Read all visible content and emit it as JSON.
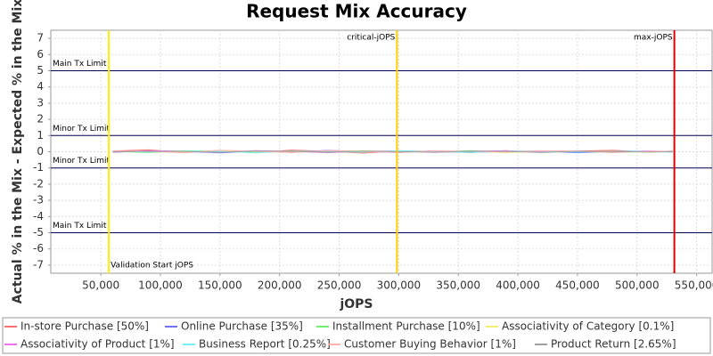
{
  "chart_data": {
    "type": "line",
    "title": "Request Mix Accuracy",
    "x_label": "jOPS",
    "y_label": "Actual % in the Mix - Expected % in the Mix",
    "x": [
      60000,
      90000,
      120000,
      150000,
      180000,
      210000,
      240000,
      270000,
      300000,
      330000,
      360000,
      390000,
      420000,
      450000,
      480000,
      510000,
      530000
    ],
    "series": [
      {
        "name": "In-store Purchase [50%]",
        "color": "#ff7070",
        "values": [
          0.05,
          0.12,
          -0.04,
          0.08,
          -0.06,
          0.1,
          0.03,
          -0.08,
          0.06,
          0.02,
          -0.05,
          0.07,
          -0.03,
          0.04,
          0.09,
          -0.02,
          0.05
        ]
      },
      {
        "name": "Online Purchase [35%]",
        "color": "#7070ff",
        "values": [
          -0.03,
          0.04,
          0.02,
          -0.07,
          0.05,
          -0.02,
          0.08,
          0.03,
          -0.05,
          0.06,
          -0.04,
          0.02,
          0.05,
          -0.06,
          0.03,
          0.04,
          -0.02
        ]
      },
      {
        "name": "Installment Purchase [10%]",
        "color": "#70f070",
        "values": [
          0.02,
          -0.05,
          0.06,
          0.03,
          -0.04,
          0.05,
          -0.06,
          0.04,
          0.02,
          -0.03,
          0.07,
          -0.02,
          0.04,
          0.03,
          -0.05,
          0.02,
          0.03
        ]
      },
      {
        "name": "Associativity of Category [0.1%]",
        "color": "#f0f070",
        "values": [
          0.01,
          0.03,
          -0.02,
          0.05,
          0.02,
          -0.04,
          0.03,
          0.06,
          -0.03,
          0.04,
          0.02,
          -0.05,
          0.03,
          0.01,
          0.04,
          -0.03,
          0.02
        ]
      },
      {
        "name": "Associativity of Product [1%]",
        "color": "#f070f0",
        "values": [
          -0.02,
          0.06,
          0.04,
          -0.03,
          0.07,
          0.02,
          -0.05,
          0.03,
          0.05,
          -0.04,
          0.03,
          0.06,
          -0.02,
          0.04,
          -0.03,
          0.05,
          0.01
        ]
      },
      {
        "name": "Business Report [0.25%]",
        "color": "#70f0f0",
        "values": [
          0.03,
          -0.02,
          0.05,
          0.02,
          -0.06,
          0.04,
          0.02,
          -0.03,
          0.06,
          0.01,
          -0.04,
          0.03,
          0.05,
          -0.02,
          0.03,
          0.02,
          -0.03
        ]
      },
      {
        "name": "Customer Buying Behavior [1%]",
        "color": "#ffb0b0",
        "values": [
          0.04,
          0.02,
          -0.06,
          0.09,
          0.03,
          -0.05,
          0.07,
          0.02,
          -0.04,
          0.05,
          0.03,
          -0.02,
          0.06,
          0.04,
          -0.05,
          0.03,
          0.02
        ]
      },
      {
        "name": "Product Return [2.65%]",
        "color": "#a0a0a0",
        "values": [
          -0.01,
          0.03,
          0.02,
          -0.04,
          0.05,
          0.03,
          -0.02,
          0.04,
          0.01,
          -0.03,
          0.04,
          0.02,
          -0.05,
          0.03,
          0.02,
          -0.02,
          0.01
        ]
      }
    ],
    "xlim": [
      8000,
      563000
    ],
    "xticks": [
      {
        "value": 50000,
        "label": "50,000"
      },
      {
        "value": 100000,
        "label": "100,000"
      },
      {
        "value": 150000,
        "label": "150,000"
      },
      {
        "value": 200000,
        "label": "200,000"
      },
      {
        "value": 250000,
        "label": "250,000"
      },
      {
        "value": 300000,
        "label": "300,000"
      },
      {
        "value": 350000,
        "label": "350,000"
      },
      {
        "value": 400000,
        "label": "400,000"
      },
      {
        "value": 450000,
        "label": "450,000"
      },
      {
        "value": 500000,
        "label": "500,000"
      },
      {
        "value": 550000,
        "label": "550,000"
      }
    ],
    "ylim": [
      -7.5,
      7.5
    ],
    "yticks": [
      -7,
      -6,
      -5,
      -4,
      -3,
      -2,
      -1,
      0,
      1,
      2,
      3,
      4,
      5,
      6,
      7
    ],
    "grid": true,
    "hlines": [
      {
        "value": 5,
        "label": "Main Tx Limit"
      },
      {
        "value": 1,
        "label": "Minor Tx Limit"
      },
      {
        "value": -1,
        "label": "Minor Tx Limit"
      },
      {
        "value": -5,
        "label": "Main Tx Limit"
      }
    ],
    "hline_color": "#000050",
    "vlines": [
      {
        "value": 56700,
        "label": "Validation Start jOPS",
        "color": "#ffee00"
      },
      {
        "value": 298500,
        "label": "critical-jOPS",
        "color": "#ffcc00"
      },
      {
        "value": 531300,
        "label": "max-jOPS",
        "color": "#dd0000"
      }
    ]
  }
}
